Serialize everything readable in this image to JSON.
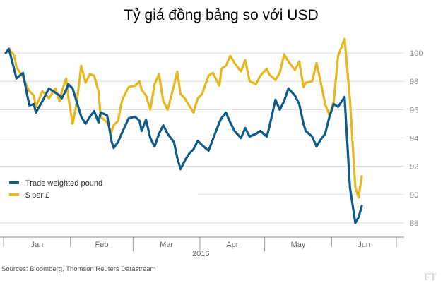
{
  "chart_data": {
    "type": "line",
    "title": "Tỷ giá đồng bảng so với USD",
    "xlabel": "2016",
    "ylabel": "",
    "ylim": [
      87,
      101.5
    ],
    "yticks": [
      88,
      90,
      92,
      94,
      96,
      98,
      100
    ],
    "grid": true,
    "legend": "bottom-left",
    "months": [
      "Jan",
      "Feb",
      "Mar",
      "Apr",
      "May",
      "Jun"
    ],
    "year_label": "2016",
    "source": "Sources: Bloomberg, Thomson Reuters Datastream",
    "brand": "FT",
    "series": [
      {
        "name": "Trade weighted pound",
        "color": "#0f5b8a",
        "values": [
          100.0,
          100.3,
          98.8,
          98.2,
          98.6,
          97.0,
          96.3,
          96.4,
          95.8,
          96.6,
          97.5,
          97.2,
          97.0,
          96.8,
          97.4,
          97.8,
          97.5,
          96.5,
          95.5,
          95.0,
          95.5,
          95.9,
          95.1,
          95.8,
          95.6,
          93.8,
          93.3,
          93.7,
          94.4,
          95.4,
          95.5,
          95.2,
          94.5,
          95.3,
          94.0,
          93.4,
          94.3,
          94.9,
          94.3,
          93.7,
          92.6,
          91.8,
          92.4,
          92.9,
          93.2,
          93.8,
          93.5,
          93.1,
          93.9,
          95.1,
          95.4,
          95.8,
          95.1,
          94.5,
          94.0,
          94.7,
          94.1,
          94.3,
          94.5,
          94.1,
          94.7,
          96.7,
          96.0,
          96.6,
          97.5,
          97.0,
          96.4,
          95.0,
          94.5,
          94.1,
          93.4,
          93.9,
          94.3,
          95.5,
          96.4,
          96.2,
          96.9,
          90.5,
          88.0,
          88.4,
          89.2
        ],
        "x_day": [
          1.0,
          2.5,
          5.0,
          6.0,
          9.0,
          11.0,
          12.0,
          14.0,
          15.0,
          18.0,
          21.0,
          24.0,
          26.0,
          27.0,
          29.0,
          30.0,
          32.0,
          34.0,
          36.0,
          38.0,
          40.0,
          42.0,
          44.0,
          45.0,
          48.0,
          50.0,
          51.0,
          53.0,
          55.0,
          58.0,
          61.0,
          63.0,
          64.0,
          66.0,
          68.0,
          70.0,
          72.0,
          74.0,
          76.0,
          79.0,
          80.5,
          82.0,
          84.0,
          86.0,
          88.0,
          90.0,
          92.0,
          95.0,
          97.0,
          100.0,
          101.0,
          103.0,
          105.0,
          107.0,
          110.0,
          112.0,
          114.0,
          117.0,
          119.0,
          122.0,
          123.0,
          126.0,
          128.0,
          130.0,
          132.0,
          135.0,
          137.0,
          139.0,
          140.0,
          143.0,
          145.0,
          147.0,
          149.0,
          151.0,
          153.0,
          155.0,
          158.0,
          160.5,
          163.0,
          164.5,
          166.0
        ]
      },
      {
        "name": "$ per £",
        "color": "#e6b71e",
        "values": [
          100.0,
          100.3,
          99.8,
          99.0,
          98.3,
          97.6,
          97.3,
          97.0,
          96.2,
          97.3,
          96.8,
          97.5,
          96.6,
          97.3,
          98.2,
          96.9,
          95.0,
          96.6,
          99.1,
          97.9,
          98.5,
          98.4,
          97.3,
          95.5,
          95.1,
          94.4,
          94.9,
          95.2,
          96.7,
          97.6,
          97.7,
          98.0,
          97.4,
          97.0,
          96.0,
          97.8,
          98.5,
          96.6,
          96.0,
          97.7,
          98.7,
          97.1,
          96.8,
          96.3,
          95.8,
          96.8,
          97.1,
          98.4,
          98.6,
          97.7,
          98.9,
          99.1,
          99.8,
          99.3,
          98.7,
          99.5,
          98.0,
          97.8,
          98.4,
          98.9,
          98.5,
          98.1,
          98.6,
          99.9,
          99.4,
          98.8,
          99.4,
          97.6,
          97.9,
          98.0,
          99.3,
          97.9,
          96.4,
          95.6,
          96.6,
          99.8,
          101.0,
          96.7,
          90.5,
          89.8,
          91.3
        ]
      }
    ]
  }
}
